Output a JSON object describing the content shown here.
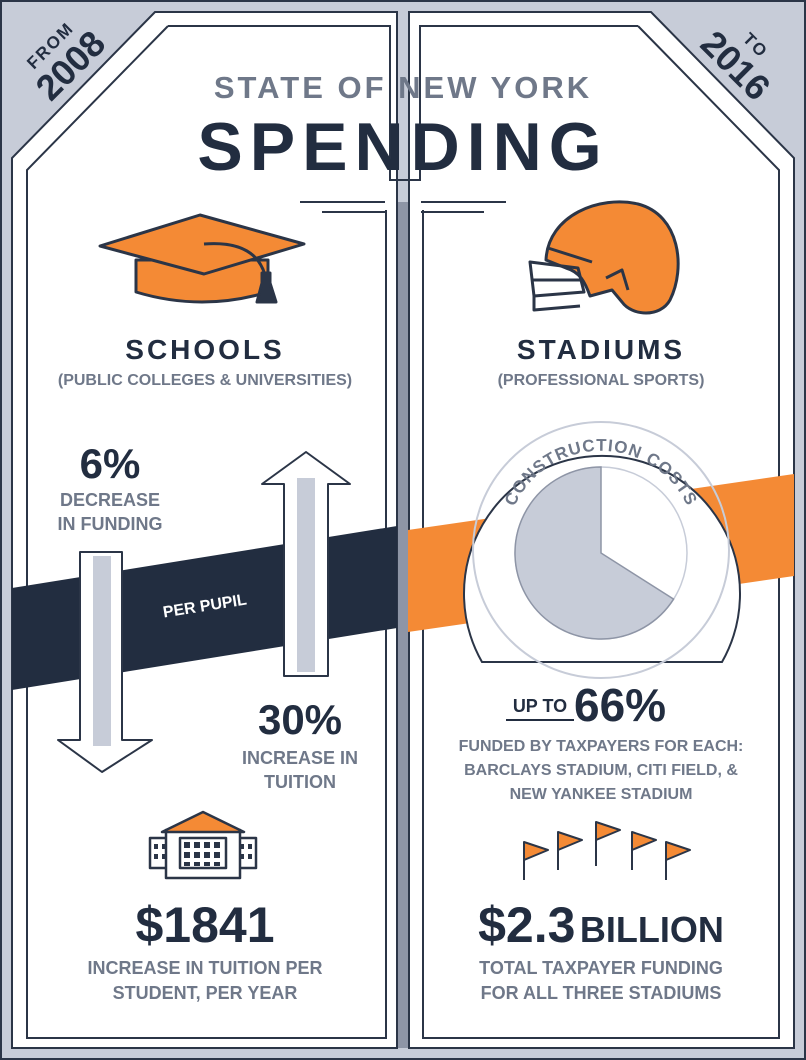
{
  "corner_left": {
    "line1": "FROM",
    "line2": "2008"
  },
  "corner_right": {
    "line1": "TO",
    "line2": "2016"
  },
  "header": {
    "kicker": "STATE OF NEW YORK",
    "title": "SPENDING"
  },
  "schools": {
    "heading": "SCHOOLS",
    "subheading": "(PUBLIC COLLEGES & UNIVERSITIES)",
    "funding_change": {
      "value": "6%",
      "line1": "DECREASE",
      "line2": "IN FUNDING"
    },
    "tuition_change": {
      "value": "30%",
      "line1": "INCREASE IN",
      "line2": "TUITION"
    },
    "band_label": "PER PUPIL",
    "cost": {
      "value": "$1841",
      "line1": "INCREASE IN TUITION PER",
      "line2": "STUDENT, PER YEAR"
    }
  },
  "stadiums": {
    "heading": "STADIUMS",
    "subheading": "(PROFESSIONAL SPORTS)",
    "pie_label": "CONSTRUCTION COSTS",
    "pie_taxpayer_share": 0.66,
    "share": {
      "prefix": "UP TO",
      "value": "66%",
      "line1": "FUNDED BY TAXPAYERS FOR EACH:",
      "line2": "BARCLAYS STADIUM, CITI FIELD, &",
      "line3": "NEW YANKEE STADIUM"
    },
    "total": {
      "value": "$2.3",
      "unit": "BILLION",
      "line1": "TOTAL TAXPAYER FUNDING",
      "line2": "FOR ALL THREE STADIUMS"
    }
  },
  "colors": {
    "navy": "#222d40",
    "orange": "#f48a35",
    "slate": "#c7ccd8",
    "grey_text": "#6f7889",
    "frame": "#8e95a6"
  },
  "icons": [
    "graduation-cap-icon",
    "football-helmet-icon",
    "arrow-down-icon",
    "arrow-up-icon",
    "school-building-icon",
    "flag-icon"
  ]
}
